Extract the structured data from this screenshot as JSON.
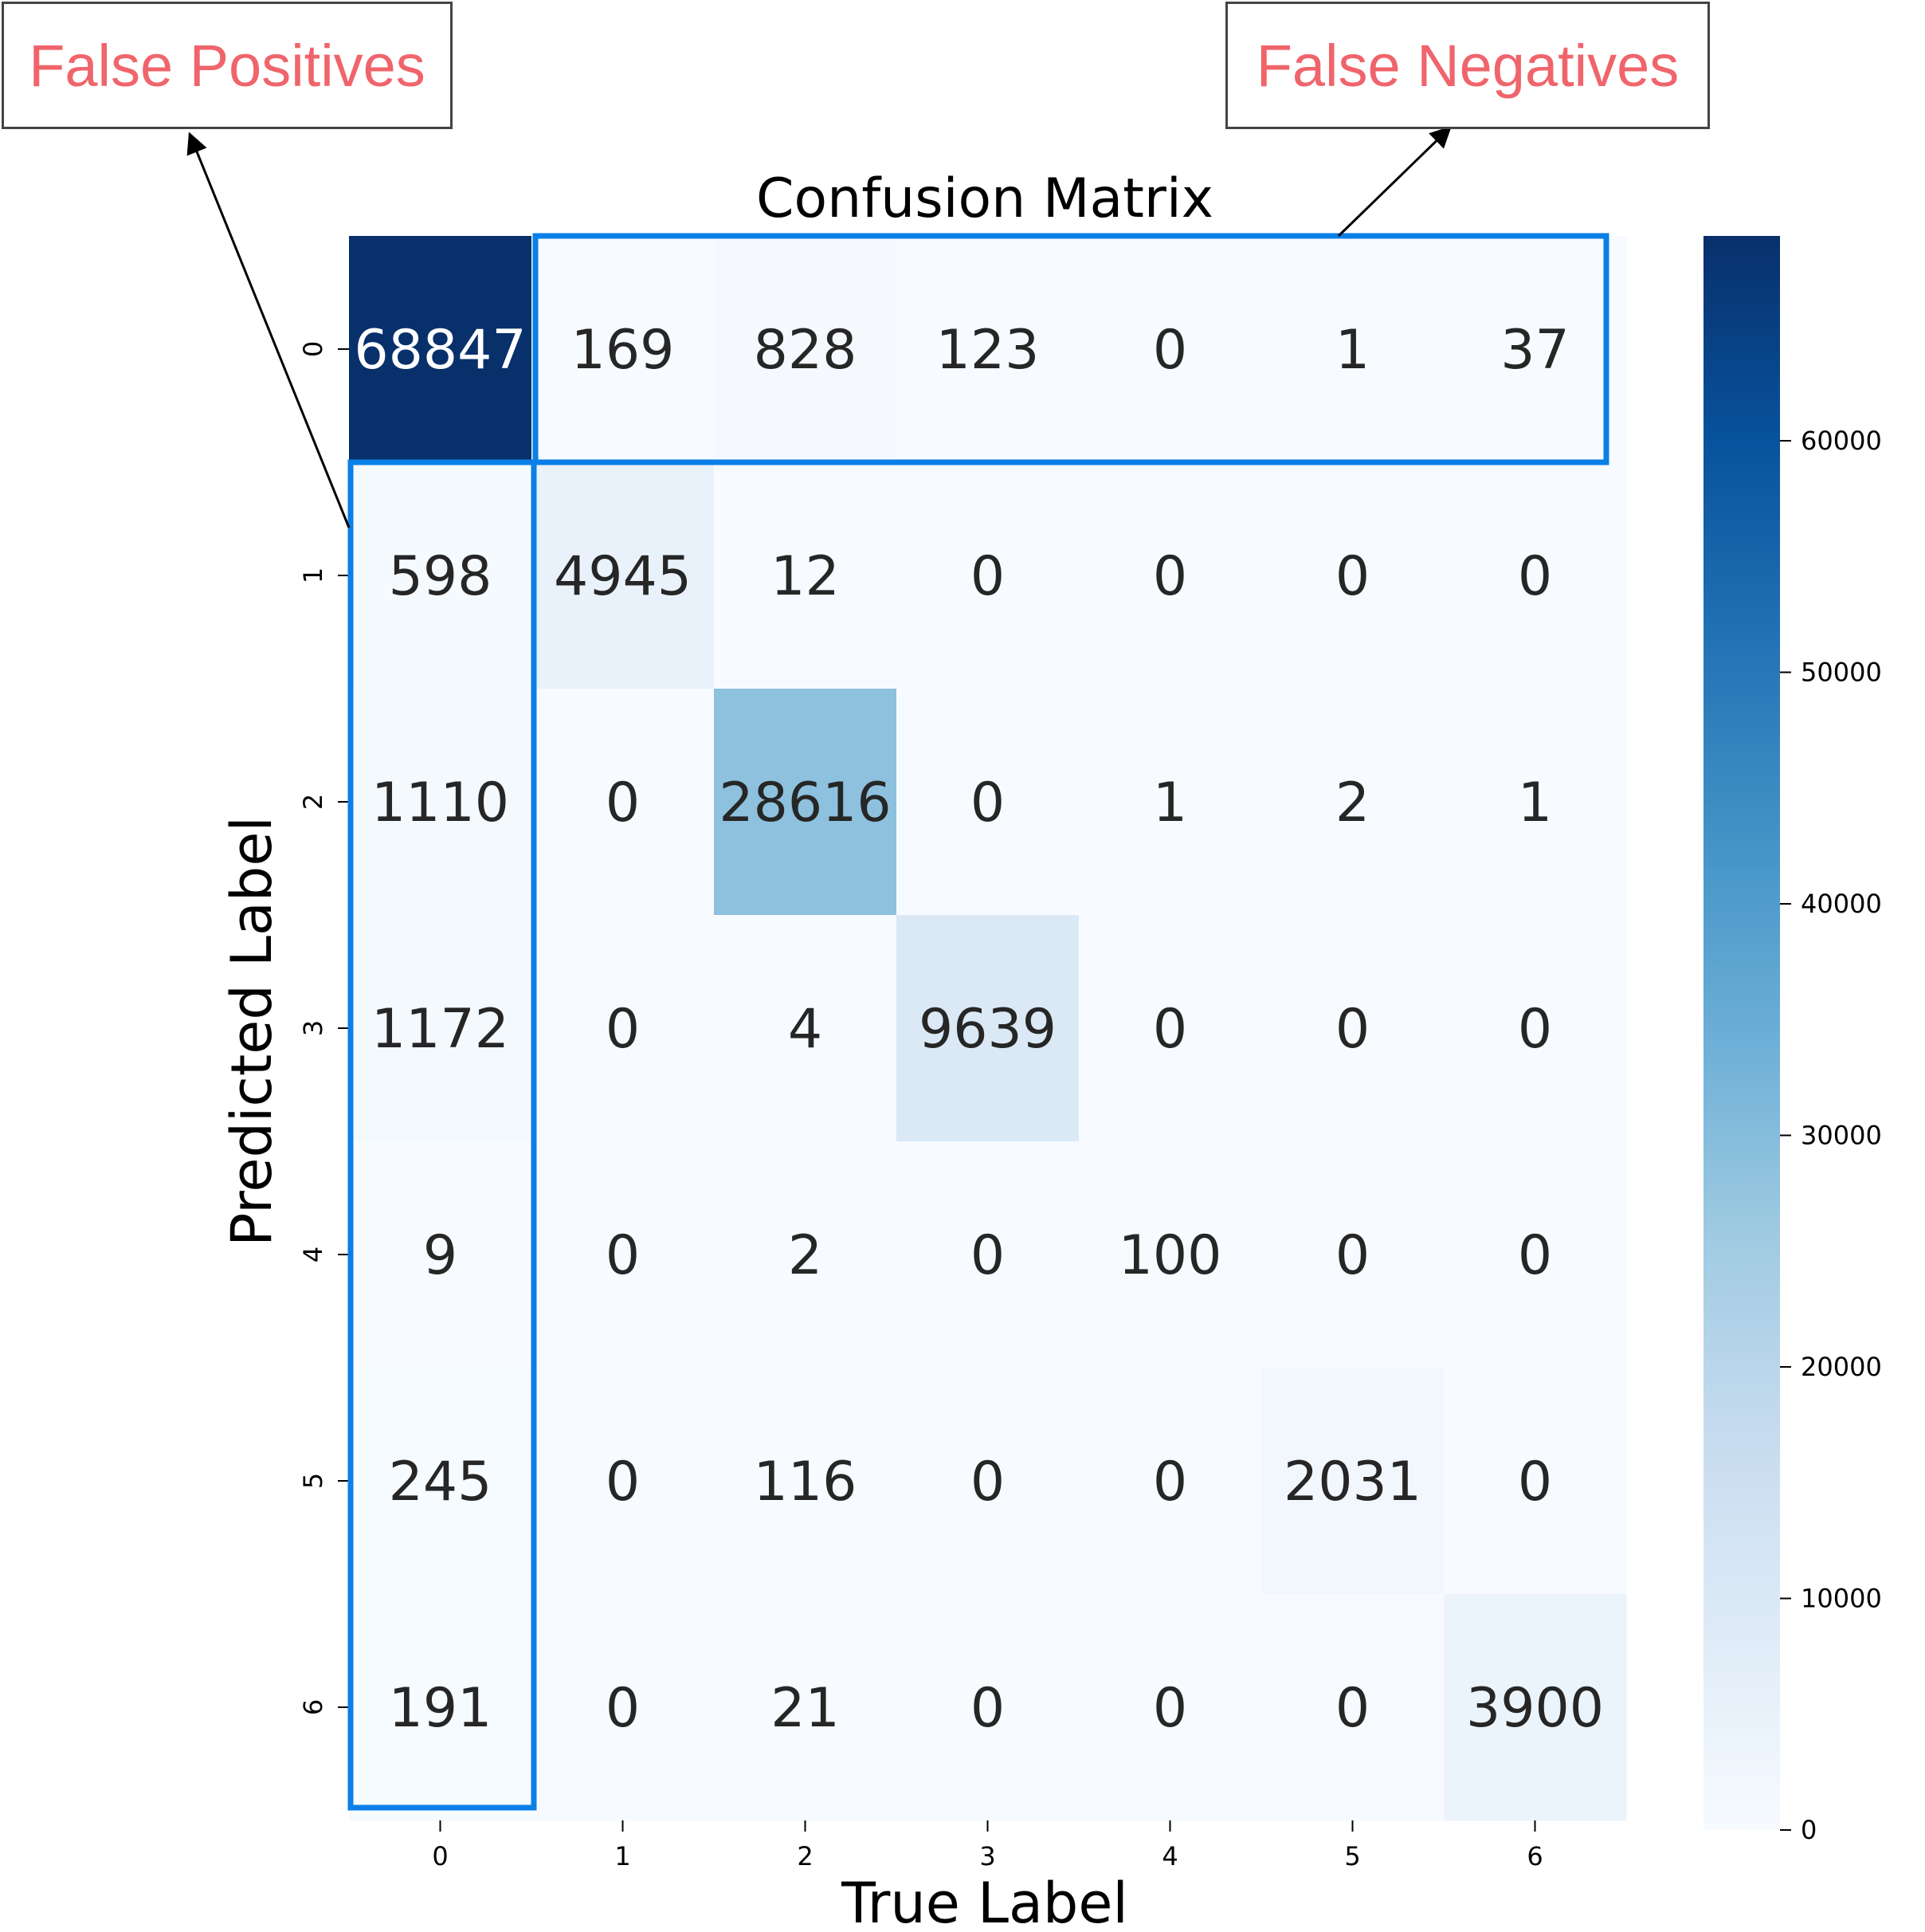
{
  "callouts": {
    "false_positives": "False Positives",
    "false_negatives": "False Negatives"
  },
  "colors": {
    "callout_text": "#f0646b",
    "highlight_border": "#0a7fe8",
    "colormap_low": "#f7fbff",
    "colormap_high": "#08306b",
    "annotation_dark_text": "#262626",
    "annotation_light_text": "#ffffff"
  },
  "chart_data": {
    "type": "heatmap",
    "title": "Confusion Matrix",
    "xlabel": "True Label",
    "ylabel": "Predicted Label",
    "x_categories": [
      "0",
      "1",
      "2",
      "3",
      "4",
      "5",
      "6"
    ],
    "y_categories": [
      "0",
      "1",
      "2",
      "3",
      "4",
      "5",
      "6"
    ],
    "values": [
      [
        68847,
        169,
        828,
        123,
        0,
        1,
        37
      ],
      [
        598,
        4945,
        12,
        0,
        0,
        0,
        0
      ],
      [
        1110,
        0,
        28616,
        0,
        1,
        2,
        1
      ],
      [
        1172,
        0,
        4,
        9639,
        0,
        0,
        0
      ],
      [
        9,
        0,
        2,
        0,
        100,
        0,
        0
      ],
      [
        245,
        0,
        116,
        0,
        0,
        2031,
        0
      ],
      [
        191,
        0,
        21,
        0,
        0,
        0,
        3900
      ]
    ],
    "colormap": "Blues",
    "colorbar": {
      "range": [
        0,
        68847
      ],
      "ticks": [
        0,
        10000,
        20000,
        30000,
        40000,
        50000,
        60000
      ]
    },
    "highlights": [
      {
        "label": "False Negatives",
        "region": "row 0, columns 1-6"
      },
      {
        "label": "False Positives",
        "region": "column 0, rows 1-6"
      }
    ]
  }
}
